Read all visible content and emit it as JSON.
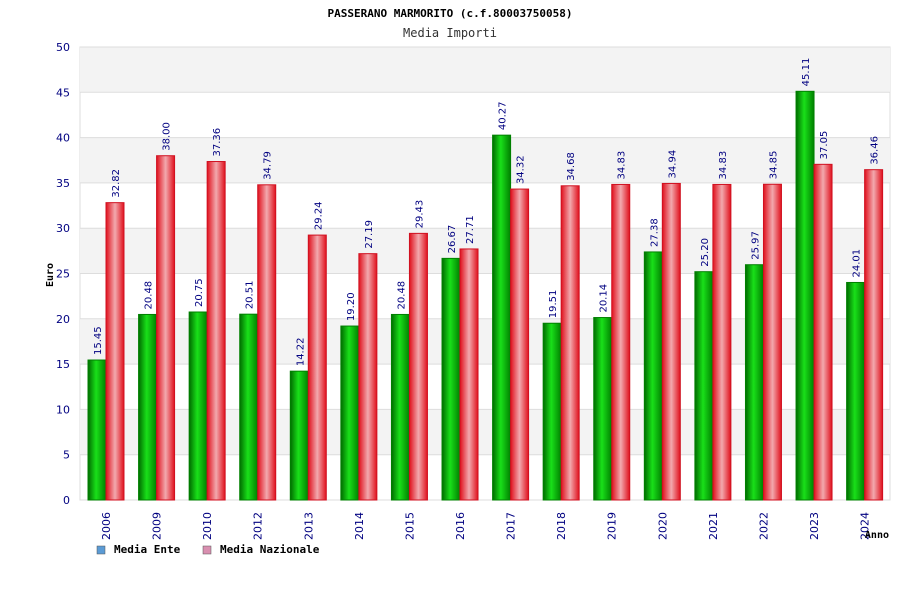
{
  "chart_data": {
    "type": "bar",
    "title": "PASSERANO MARMORITO (c.f.80003750058)",
    "subtitle": "Media Importi",
    "xlabel": "Anno",
    "ylabel": "Euro",
    "ylim": [
      0,
      50
    ],
    "yticks": [
      0,
      5,
      10,
      15,
      20,
      25,
      30,
      35,
      40,
      45,
      50
    ],
    "grid": true,
    "legend_position": "bottom-left",
    "categories": [
      "2006",
      "2009",
      "2010",
      "2012",
      "2013",
      "2014",
      "2015",
      "2016",
      "2017",
      "2018",
      "2019",
      "2020",
      "2021",
      "2022",
      "2023",
      "2024"
    ],
    "series": [
      {
        "name": "Media Ente",
        "color": "#00c000",
        "legend_color": "#5b9bd5",
        "values": [
          15.45,
          20.48,
          20.75,
          20.51,
          14.22,
          19.2,
          20.48,
          26.67,
          40.27,
          19.51,
          20.14,
          27.38,
          25.2,
          25.97,
          45.11,
          24.01
        ],
        "labels": [
          "15.45",
          "20.48",
          "20.75",
          "20.51",
          "14.22",
          "19.20",
          "20.48",
          "26.67",
          "40.27",
          "19.51",
          "20.14",
          "27.38",
          "25.20",
          "25.97",
          "45.11",
          "24.01"
        ]
      },
      {
        "name": "Media Nazionale",
        "color": "#e0202a",
        "legend_color": "#d98fb0",
        "values": [
          32.82,
          38.0,
          37.36,
          34.79,
          29.24,
          27.19,
          29.43,
          27.71,
          34.32,
          34.68,
          34.83,
          34.94,
          34.83,
          34.85,
          37.05,
          36.46
        ],
        "labels": [
          "32.82",
          "38.00",
          "37.36",
          "34.79",
          "29.24",
          "27.19",
          "29.43",
          "27.71",
          "34.32",
          "34.68",
          "34.83",
          "34.94",
          "34.83",
          "34.85",
          "37.05",
          "36.46"
        ]
      }
    ]
  }
}
